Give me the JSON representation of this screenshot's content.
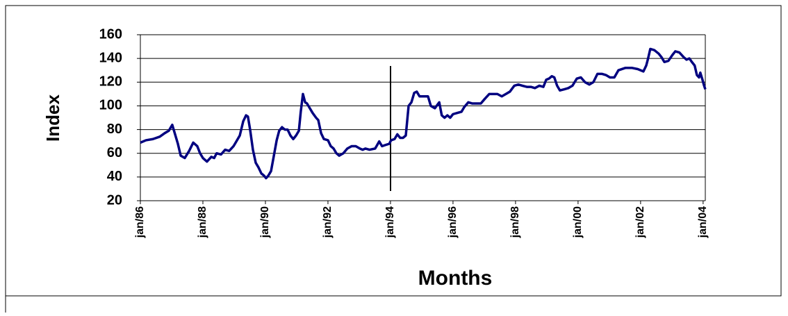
{
  "chart_data": {
    "type": "line",
    "ylabel": "Index",
    "xlabel": "Months",
    "xlim": [
      1986,
      2004.07
    ],
    "ylim": [
      20,
      160
    ],
    "yticks": [
      20,
      40,
      60,
      80,
      100,
      120,
      140,
      160
    ],
    "grid": true,
    "xticks": [
      {
        "value": 1986,
        "label": "jan/86"
      },
      {
        "value": 1988,
        "label": "jan/88"
      },
      {
        "value": 1990,
        "label": "jan/90"
      },
      {
        "value": 1992,
        "label": "jan/92"
      },
      {
        "value": 1994,
        "label": "jan/94"
      },
      {
        "value": 1996,
        "label": "jan/96"
      },
      {
        "value": 1998,
        "label": "jan/98"
      },
      {
        "value": 2000,
        "label": "jan/00"
      },
      {
        "value": 2002,
        "label": "jan/02"
      },
      {
        "value": 2004,
        "label": "jan/04"
      }
    ],
    "x": [
      1986,
      1986.18,
      1986.4,
      1986.62,
      1986.78,
      1986.91,
      1987.02,
      1987.11,
      1987.2,
      1987.29,
      1987.42,
      1987.56,
      1987.69,
      1987.82,
      1987.91,
      1988,
      1988.13,
      1988.27,
      1988.36,
      1988.44,
      1988.58,
      1988.71,
      1988.84,
      1988.98,
      1989.07,
      1989.18,
      1989.29,
      1989.38,
      1989.44,
      1989.51,
      1989.6,
      1989.69,
      1989.78,
      1989.87,
      1989.96,
      1990.02,
      1990.09,
      1990.18,
      1990.27,
      1990.36,
      1990.44,
      1990.53,
      1990.62,
      1990.71,
      1990.8,
      1990.89,
      1990.98,
      1991.07,
      1991.13,
      1991.2,
      1991.27,
      1991.33,
      1991.42,
      1991.51,
      1991.62,
      1991.69,
      1991.78,
      1991.87,
      1992,
      1992.09,
      1992.18,
      1992.27,
      1992.36,
      1992.49,
      1992.62,
      1992.76,
      1992.89,
      1993.02,
      1993.11,
      1993.2,
      1993.33,
      1993.51,
      1993.64,
      1993.73,
      1993.84,
      1993.96,
      1994.02,
      1994.13,
      1994.22,
      1994.31,
      1994.4,
      1994.49,
      1994.58,
      1994.67,
      1994.76,
      1994.84,
      1994.93,
      1995.07,
      1995.2,
      1995.29,
      1995.42,
      1995.56,
      1995.64,
      1995.73,
      1995.82,
      1995.91,
      1996,
      1996.13,
      1996.27,
      1996.36,
      1996.49,
      1996.62,
      1996.76,
      1996.89,
      1997.02,
      1997.16,
      1997.29,
      1997.42,
      1997.56,
      1997.69,
      1997.82,
      1997.96,
      1998.09,
      1998.22,
      1998.36,
      1998.49,
      1998.62,
      1998.76,
      1998.89,
      1998.98,
      1999.07,
      1999.16,
      1999.24,
      1999.33,
      1999.42,
      1999.56,
      1999.69,
      1999.82,
      1999.96,
      2000.09,
      2000.22,
      2000.36,
      2000.49,
      2000.62,
      2000.76,
      2000.89,
      2001.02,
      2001.16,
      2001.29,
      2001.51,
      2001.73,
      2001.91,
      2002.09,
      2002.18,
      2002.24,
      2002.31,
      2002.44,
      2002.58,
      2002.67,
      2002.76,
      2002.89,
      2003.02,
      2003.11,
      2003.24,
      2003.38,
      2003.47,
      2003.56,
      2003.64,
      2003.73,
      2003.8,
      2003.87,
      2003.91,
      2003.98,
      2004.02,
      2004.07
    ],
    "series": [
      {
        "color": "#000080",
        "values": [
          69,
          71,
          72,
          74,
          77,
          79,
          84,
          76,
          68,
          58,
          56,
          62,
          69,
          66,
          60,
          56,
          53,
          57,
          56,
          60,
          59,
          63,
          62,
          66,
          70,
          75,
          87,
          92,
          91,
          80,
          63,
          52,
          48,
          43,
          41,
          39,
          41,
          45,
          58,
          71,
          79,
          82,
          80,
          80,
          75,
          72,
          75,
          79,
          95,
          110,
          103,
          102,
          98,
          94,
          90,
          88,
          77,
          72,
          71,
          66,
          64,
          60,
          58,
          60,
          64,
          66,
          66,
          64,
          63,
          64,
          63,
          64,
          70,
          66,
          67,
          68,
          71,
          72,
          76,
          73,
          73,
          75,
          100,
          103,
          111,
          112,
          108,
          108,
          108,
          100,
          98,
          103,
          92,
          90,
          92,
          90,
          93,
          94,
          95,
          99,
          103,
          102,
          102,
          102,
          106,
          110,
          110,
          110,
          108,
          110,
          112,
          117,
          118,
          117,
          116,
          116,
          115,
          117,
          116,
          122,
          123,
          125,
          124,
          117,
          113,
          114,
          115,
          117,
          123,
          124,
          120,
          118,
          120,
          127,
          127,
          126,
          124,
          124,
          130,
          132,
          132,
          131,
          129,
          134,
          140,
          148,
          147,
          144,
          141,
          137,
          138,
          143,
          146,
          145,
          141,
          139,
          140,
          137,
          134,
          126,
          124,
          128,
          122,
          118,
          114
        ]
      }
    ]
  }
}
